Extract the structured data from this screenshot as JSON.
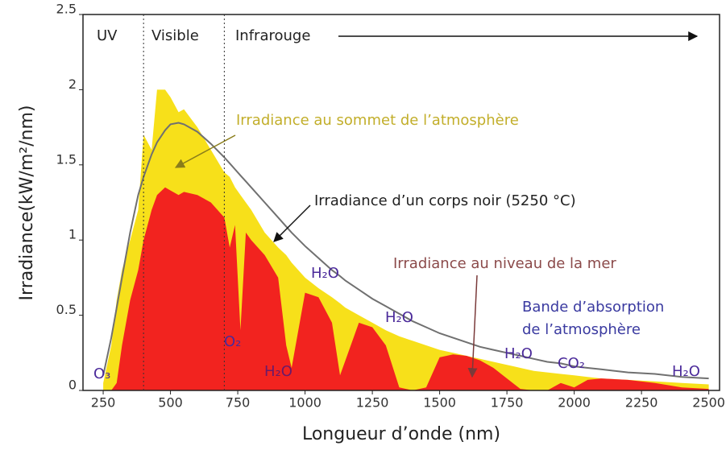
{
  "chart_data": {
    "type": "area",
    "xlabel": "Longueur d’onde (nm)",
    "ylabel": "Irradiance(kW/m²/nm)",
    "xlim": [
      175,
      2540
    ],
    "ylim": [
      0,
      2.5
    ],
    "xticks": [
      250,
      500,
      750,
      1000,
      1250,
      1500,
      1750,
      2000,
      2250,
      2500
    ],
    "yticks": [
      0,
      0.5,
      1,
      1.5,
      2,
      2.5
    ],
    "region_bounds": [
      400,
      700
    ],
    "regions": [
      "UV",
      "Visible",
      "Infrarouge"
    ],
    "absorption_label": [
      "Bande d’absorption",
      "de l’atmosphère"
    ],
    "molecules": [
      "O₃",
      "O₂",
      "H₂O",
      "H₂O",
      "H₂O",
      "H₂O",
      "CO₂",
      "H₂O"
    ],
    "x": [
      250,
      280,
      300,
      320,
      350,
      380,
      400,
      430,
      450,
      480,
      500,
      530,
      550,
      600,
      650,
      700,
      720,
      740,
      760,
      780,
      800,
      850,
      900,
      930,
      950,
      1000,
      1050,
      1100,
      1130,
      1150,
      1200,
      1250,
      1300,
      1350,
      1400,
      1450,
      1500,
      1550,
      1600,
      1650,
      1700,
      1750,
      1800,
      1850,
      1900,
      1950,
      2000,
      2050,
      2100,
      2200,
      2300,
      2400,
      2500
    ],
    "series": [
      {
        "name": "Irradiance au sommet de l’atmosphère",
        "color": "#f7e01a",
        "style": "area",
        "values": [
          0.05,
          0.3,
          0.6,
          0.8,
          1.0,
          1.2,
          1.7,
          1.6,
          2.0,
          2.0,
          1.95,
          1.85,
          1.87,
          1.75,
          1.6,
          1.45,
          1.42,
          1.35,
          1.3,
          1.25,
          1.2,
          1.05,
          0.95,
          0.9,
          0.85,
          0.75,
          0.68,
          0.62,
          0.58,
          0.55,
          0.5,
          0.45,
          0.4,
          0.36,
          0.33,
          0.3,
          0.27,
          0.25,
          0.23,
          0.21,
          0.19,
          0.17,
          0.15,
          0.13,
          0.12,
          0.11,
          0.1,
          0.09,
          0.08,
          0.07,
          0.06,
          0.05,
          0.04
        ]
      },
      {
        "name": "Irradiance au niveau de la mer",
        "color": "#f2231f",
        "style": "area",
        "values": [
          0,
          0,
          0.05,
          0.3,
          0.6,
          0.8,
          1.0,
          1.2,
          1.3,
          1.35,
          1.33,
          1.3,
          1.32,
          1.3,
          1.25,
          1.15,
          0.95,
          1.1,
          0.4,
          1.05,
          1.0,
          0.9,
          0.75,
          0.3,
          0.15,
          0.65,
          0.62,
          0.45,
          0.1,
          0.2,
          0.45,
          0.42,
          0.3,
          0.02,
          0,
          0.02,
          0.22,
          0.24,
          0.23,
          0.2,
          0.15,
          0.08,
          0.01,
          0,
          0,
          0.05,
          0.02,
          0.07,
          0.08,
          0.07,
          0.05,
          0.02,
          0.01
        ]
      },
      {
        "name": "Irradiance d’un corps noir (5250 °C)",
        "color": "#707070",
        "style": "line",
        "values": [
          0.1,
          0.35,
          0.55,
          0.75,
          1.05,
          1.3,
          1.42,
          1.57,
          1.65,
          1.73,
          1.77,
          1.78,
          1.77,
          1.72,
          1.64,
          1.55,
          1.51,
          1.47,
          1.43,
          1.39,
          1.35,
          1.25,
          1.15,
          1.09,
          1.05,
          0.96,
          0.88,
          0.8,
          0.76,
          0.73,
          0.67,
          0.61,
          0.56,
          0.51,
          0.46,
          0.42,
          0.38,
          0.35,
          0.32,
          0.29,
          0.27,
          0.25,
          0.23,
          0.21,
          0.19,
          0.18,
          0.16,
          0.15,
          0.14,
          0.12,
          0.11,
          0.09,
          0.08
        ]
      }
    ]
  }
}
